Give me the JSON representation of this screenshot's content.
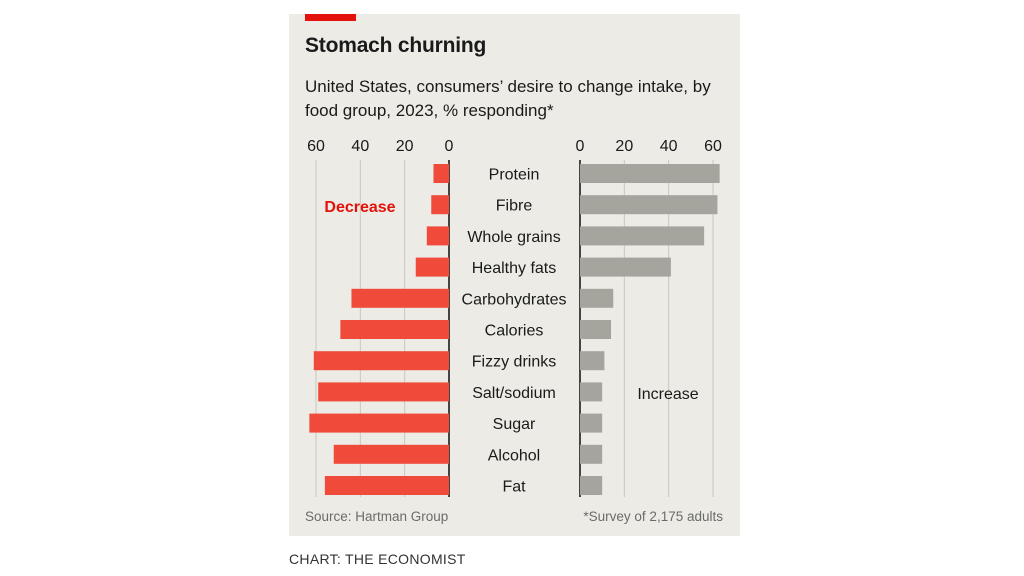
{
  "header": {
    "title": "Stomach churning",
    "subtitle": "United States, consumers’ desire to change intake, by food group, 2023, % responding*"
  },
  "footer": {
    "source": "Source: Hartman Group",
    "footnote": "*Survey of 2,175 adults",
    "credit": "CHART: THE ECONOMIST"
  },
  "colors": {
    "decrease": "#f04a3a",
    "increase": "#a6a59d",
    "accent": "#e3120b",
    "background": "#ecebe5"
  },
  "chart_data": {
    "type": "bar",
    "orientation": "horizontal",
    "categories": [
      "Protein",
      "Fibre",
      "Whole grains",
      "Healthy fats",
      "Carbohydrates",
      "Calories",
      "Fizzy drinks",
      "Salt/sodium",
      "Sugar",
      "Alcohol",
      "Fat"
    ],
    "series": [
      {
        "name": "Decrease",
        "values": [
          7,
          8,
          10,
          15,
          44,
          49,
          61,
          59,
          63,
          52,
          56
        ]
      },
      {
        "name": "Increase",
        "values": [
          63,
          62,
          56,
          41,
          15,
          14,
          11,
          10,
          10,
          10,
          10
        ]
      }
    ],
    "ticks": [
      "0",
      "20",
      "40",
      "60"
    ],
    "xlim": [
      0,
      60
    ],
    "grid": true
  }
}
